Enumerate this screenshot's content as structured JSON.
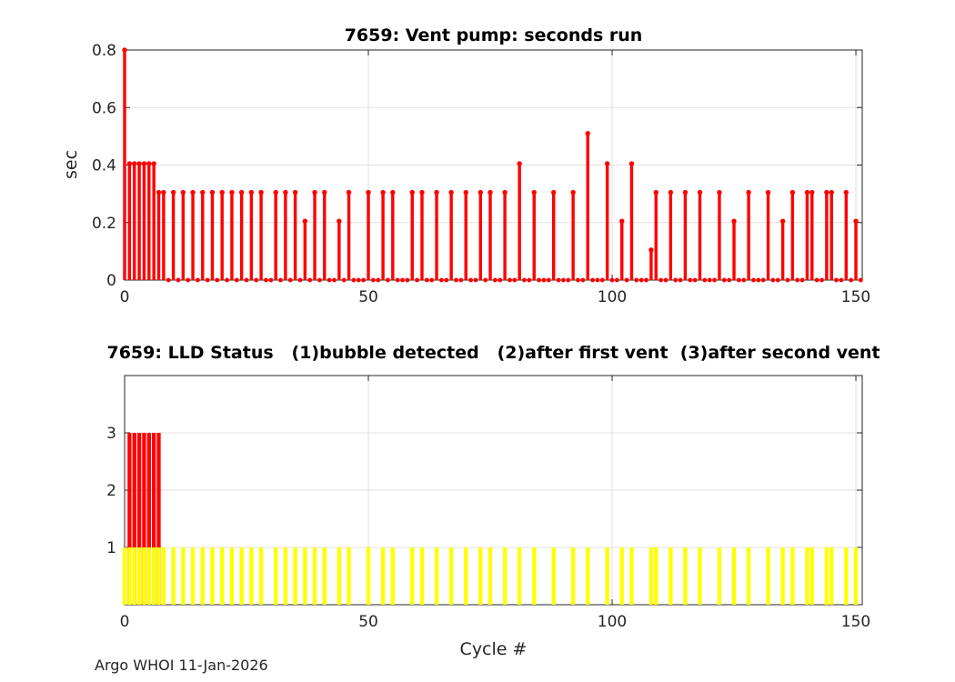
{
  "footer": {
    "text": "Argo WHOI 11-Jan-2026"
  },
  "style": {
    "stem_color": "#ff0000",
    "bar_red": "#ff0000",
    "bar_yellow": "#ffff00",
    "axis_color": "#262626",
    "grid_color": "#e0e0e0",
    "text_color": "#262626",
    "background": "#ffffff"
  },
  "chart_data": [
    {
      "type": "stem",
      "name": "vent-pump-seconds-run",
      "title": "7659: Vent pump: seconds run",
      "ylabel": "sec",
      "xlabel": "",
      "xlim": [
        0,
        151.3
      ],
      "ylim": [
        0,
        0.8
      ],
      "xticks": [
        0,
        50,
        100,
        150
      ],
      "xtick_labels": [
        "0",
        "50",
        "100",
        "150"
      ],
      "yticks": [
        0,
        0.2,
        0.4,
        0.6,
        0.8
      ],
      "ytick_labels": [
        "0",
        "0.2",
        "0.4",
        "0.6",
        "0.8"
      ],
      "grid": true,
      "n_cycles": 152,
      "color": "#ff0000",
      "zero_cycles_have_dot_markers": true,
      "nonzero_points": [
        [
          0,
          0.8
        ],
        [
          1,
          0.405
        ],
        [
          2,
          0.405
        ],
        [
          3,
          0.405
        ],
        [
          4,
          0.405
        ],
        [
          5,
          0.405
        ],
        [
          6,
          0.405
        ],
        [
          7,
          0.305
        ],
        [
          8,
          0.305
        ],
        [
          10,
          0.305
        ],
        [
          12,
          0.305
        ],
        [
          14,
          0.305
        ],
        [
          16,
          0.305
        ],
        [
          18,
          0.305
        ],
        [
          20,
          0.305
        ],
        [
          22,
          0.305
        ],
        [
          24,
          0.305
        ],
        [
          26,
          0.305
        ],
        [
          28,
          0.305
        ],
        [
          31,
          0.305
        ],
        [
          33,
          0.305
        ],
        [
          35,
          0.305
        ],
        [
          37,
          0.205
        ],
        [
          39,
          0.305
        ],
        [
          41,
          0.305
        ],
        [
          44,
          0.205
        ],
        [
          46,
          0.305
        ],
        [
          50,
          0.305
        ],
        [
          53,
          0.305
        ],
        [
          55,
          0.305
        ],
        [
          59,
          0.305
        ],
        [
          61,
          0.305
        ],
        [
          64,
          0.305
        ],
        [
          67,
          0.305
        ],
        [
          70,
          0.305
        ],
        [
          73,
          0.305
        ],
        [
          75,
          0.305
        ],
        [
          78,
          0.305
        ],
        [
          81,
          0.405
        ],
        [
          84,
          0.305
        ],
        [
          88,
          0.305
        ],
        [
          92,
          0.305
        ],
        [
          95,
          0.51
        ],
        [
          99,
          0.405
        ],
        [
          102,
          0.205
        ],
        [
          104,
          0.405
        ],
        [
          108,
          0.105
        ],
        [
          109,
          0.305
        ],
        [
          112,
          0.305
        ],
        [
          115,
          0.305
        ],
        [
          118,
          0.305
        ],
        [
          122,
          0.305
        ],
        [
          125,
          0.205
        ],
        [
          128,
          0.305
        ],
        [
          132,
          0.305
        ],
        [
          135,
          0.205
        ],
        [
          137,
          0.305
        ],
        [
          140,
          0.305
        ],
        [
          141,
          0.305
        ],
        [
          144,
          0.305
        ],
        [
          145,
          0.305
        ],
        [
          148,
          0.305
        ],
        [
          150,
          0.205
        ]
      ]
    },
    {
      "type": "bar",
      "name": "lld-status",
      "title": "7659: LLD Status   (1)bubble detected   (2)after first vent  (3)after second vent",
      "ylabel": "",
      "xlabel": "Cycle #",
      "xlim": [
        0,
        151.3
      ],
      "ylim": [
        0,
        4
      ],
      "xticks": [
        0,
        50,
        100,
        150
      ],
      "xtick_labels": [
        "0",
        "50",
        "100",
        "150"
      ],
      "yticks": [
        1,
        2,
        3
      ],
      "ytick_labels": [
        "1",
        "2",
        "3"
      ],
      "grid": true,
      "n_cycles": 152,
      "series": [
        {
          "name": "status-3-after-second-vent",
          "color": "#ff0000",
          "value": 3,
          "cycles": [
            1,
            2,
            3,
            4,
            5,
            6,
            7
          ]
        },
        {
          "name": "status-1-bubble-detected",
          "color": "#ffff00",
          "value": 1,
          "cycles": [
            0,
            1,
            2,
            3,
            4,
            5,
            6,
            7,
            8,
            10,
            12,
            14,
            16,
            18,
            20,
            22,
            24,
            26,
            28,
            31,
            33,
            35,
            37,
            39,
            41,
            44,
            46,
            50,
            53,
            55,
            59,
            61,
            64,
            67,
            70,
            73,
            75,
            78,
            81,
            84,
            88,
            92,
            95,
            99,
            102,
            104,
            108,
            109,
            112,
            115,
            118,
            122,
            125,
            128,
            132,
            135,
            137,
            140,
            141,
            144,
            145,
            148,
            150
          ]
        }
      ]
    }
  ]
}
